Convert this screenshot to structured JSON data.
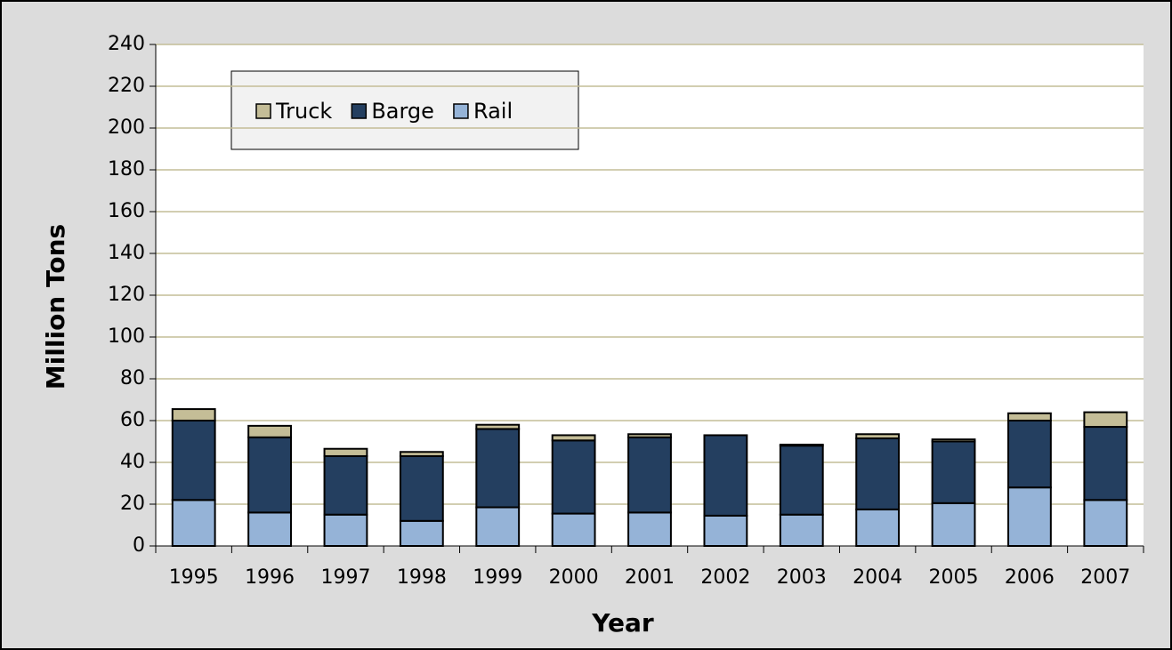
{
  "chart_data": {
    "type": "stacked_bar",
    "x_label": "Year",
    "y_label": "Million Tons",
    "categories": [
      "1995",
      "1996",
      "1997",
      "1998",
      "1999",
      "2000",
      "2001",
      "2002",
      "2003",
      "2004",
      "2005",
      "2006",
      "2007"
    ],
    "series": [
      {
        "name": "Rail",
        "color": "#95b3d7",
        "values": [
          22,
          16,
          15,
          12,
          18.5,
          15.5,
          16,
          14.5,
          15,
          17.5,
          20.5,
          28,
          22
        ]
      },
      {
        "name": "Barge",
        "color": "#243f60",
        "values": [
          38,
          36,
          28,
          31,
          37.5,
          35,
          36,
          38.5,
          33,
          34,
          29.5,
          32,
          35
        ]
      },
      {
        "name": "Truck",
        "color": "#c4bd97",
        "values": [
          5.5,
          5.5,
          3.5,
          2,
          2,
          2.5,
          1.5,
          0,
          0.5,
          2,
          1,
          3.5,
          7
        ]
      }
    ],
    "ylim": [
      0,
      240
    ],
    "yticks": [
      0,
      20,
      40,
      60,
      80,
      100,
      120,
      140,
      160,
      180,
      200,
      220,
      240
    ],
    "grid": true
  }
}
